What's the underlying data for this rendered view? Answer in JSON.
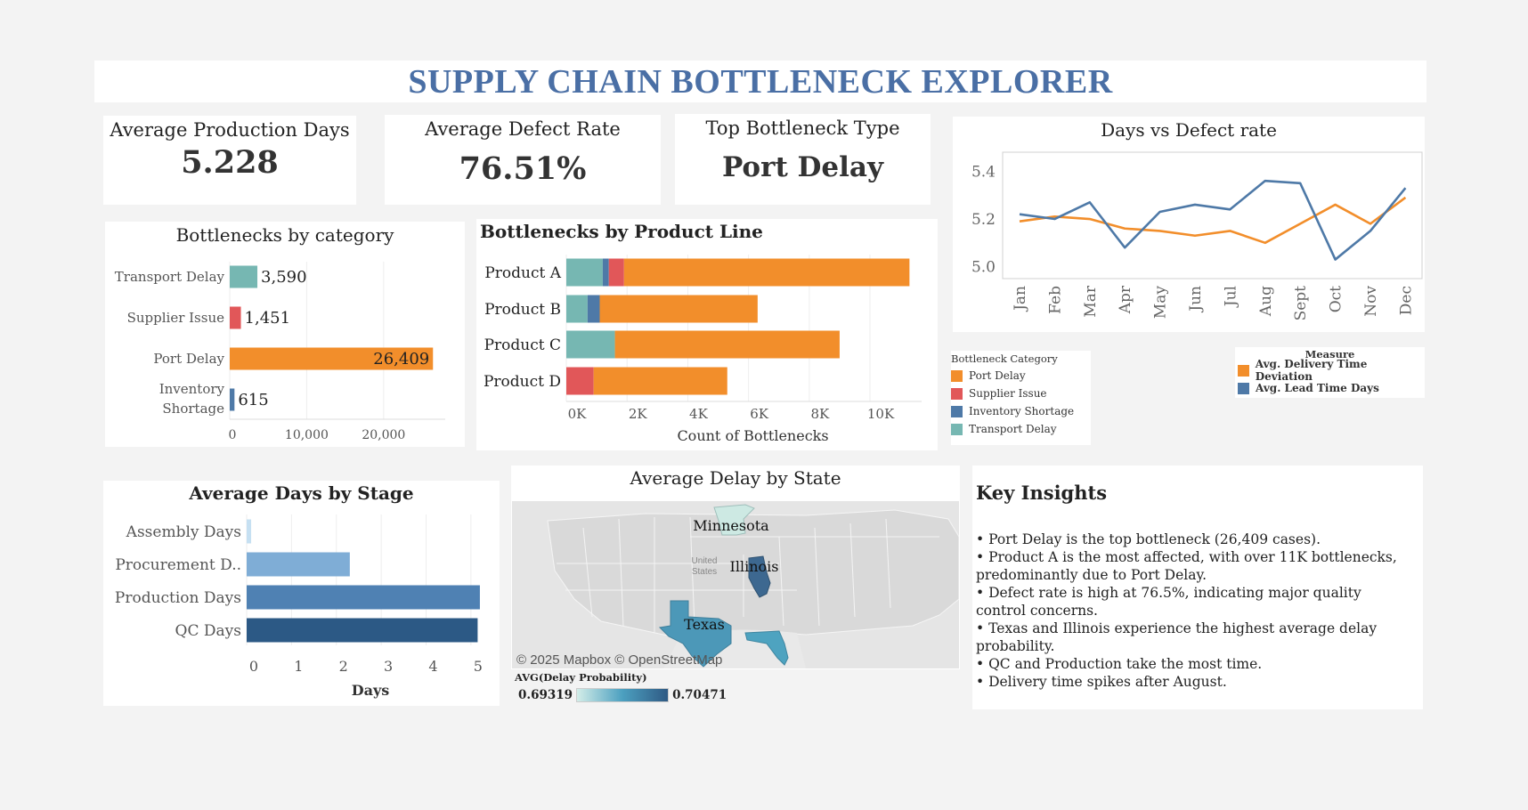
{
  "dashboard_title": "SUPPLY CHAIN BOTTLENECK EXPLORER",
  "kpis": [
    {
      "label": "Average Production Days",
      "value": "5.228"
    },
    {
      "label": "Average Defect Rate",
      "value": "76.51%"
    },
    {
      "label": "Top Bottleneck Type",
      "value": "Port Delay"
    }
  ],
  "colors": {
    "port_delay": "#f28e2b",
    "supplier_issue": "#e15759",
    "inventory_shortage": "#4e79a7",
    "transport_delay": "#76b7b2",
    "title_blue": "#4a6fa5"
  },
  "charts": {
    "by_category": {
      "title": "Bottlenecks by category",
      "chart_data": {
        "type": "bar",
        "orientation": "horizontal",
        "categories": [
          "Transport Delay",
          "Supplier Issue",
          "Port Delay",
          "Inventory Shortage"
        ],
        "values": [
          3590,
          1451,
          26409,
          615
        ],
        "value_labels": [
          "3,590",
          "1,451",
          "26,409",
          "615"
        ],
        "xlim": [
          0,
          28000
        ],
        "x_ticks": [
          0,
          10000,
          20000
        ],
        "x_tick_labels": [
          "0",
          "10,000",
          "20,000"
        ],
        "grid": true
      }
    },
    "by_product": {
      "title": "Bottlenecks by Product Line",
      "chart_data": {
        "type": "bar",
        "orientation": "horizontal",
        "stacked": true,
        "categories": [
          "Product A",
          "Product B",
          "Product C",
          "Product D"
        ],
        "series": [
          {
            "name": "Transport Delay",
            "values": [
              1200,
              700,
              1600,
              0
            ]
          },
          {
            "name": "Inventory Shortage",
            "values": [
              200,
              400,
              0,
              0
            ]
          },
          {
            "name": "Supplier Issue",
            "values": [
              500,
              0,
              0,
              900
            ]
          },
          {
            "name": "Port Delay",
            "values": [
              9400,
              5200,
              7400,
              4400
            ]
          }
        ],
        "xlabel": "Count of Bottlenecks",
        "xlim": [
          0,
          11700
        ],
        "x_ticks": [
          0,
          2000,
          4000,
          6000,
          8000,
          10000
        ],
        "x_tick_labels": [
          "0K",
          "2K",
          "4K",
          "6K",
          "8K",
          "10K"
        ],
        "grid": true
      }
    },
    "days_vs_defect": {
      "title": "Days vs Defect rate",
      "chart_data": {
        "type": "line",
        "categories": [
          "Jan",
          "Feb",
          "Mar",
          "Apr",
          "May",
          "Jun",
          "Jul",
          "Aug",
          "Sept",
          "Oct",
          "Nov",
          "Dec"
        ],
        "series": [
          {
            "name": "Avg. Delivery Time Deviation",
            "values": [
              5.19,
              5.21,
              5.2,
              5.16,
              5.15,
              5.13,
              5.15,
              5.1,
              5.18,
              5.26,
              5.18,
              5.29
            ]
          },
          {
            "name": "Avg. Lead Time Days",
            "values": [
              5.22,
              5.2,
              5.27,
              5.08,
              5.23,
              5.26,
              5.24,
              5.36,
              5.35,
              5.03,
              5.15,
              5.33
            ]
          }
        ],
        "ylim": [
          4.95,
          5.48
        ],
        "y_ticks": [
          5.0,
          5.2,
          5.4
        ],
        "y_tick_labels": [
          "5.0",
          "5.2",
          "5.4"
        ],
        "grid": false
      }
    },
    "by_stage": {
      "title": "Average Days by Stage",
      "chart_data": {
        "type": "bar",
        "orientation": "horizontal",
        "categories": [
          "Assembly Days",
          "Procurement D..",
          "Production Days",
          "QC Days"
        ],
        "values": [
          0.1,
          2.3,
          5.2,
          5.15
        ],
        "colors": [
          "#c6e0f2",
          "#7fadd6",
          "#4f81b3",
          "#2c5985"
        ],
        "xlabel": "Days",
        "xlim": [
          0,
          5.4
        ],
        "x_ticks": [
          0,
          1,
          2,
          3,
          4,
          5
        ],
        "x_tick_labels": [
          "0",
          "1",
          "2",
          "3",
          "4",
          "5"
        ],
        "grid": true
      }
    }
  },
  "legends": {
    "category": {
      "title": "Bottleneck Category",
      "items": [
        "Port Delay",
        "Supplier Issue",
        "Inventory Shortage",
        "Transport Delay"
      ]
    },
    "measure": {
      "title": "Measure",
      "items": [
        "Avg. Delivery Time Deviation",
        "Avg. Lead Time Days"
      ]
    }
  },
  "map": {
    "title": "Average Delay by State",
    "states": [
      "Minnesota",
      "Illinois",
      "Texas"
    ],
    "country_label_1": "United",
    "country_label_2": "States",
    "attribution": "© 2025 Mapbox © OpenStreetMap",
    "scale_title": "AVG(Delay Probability)",
    "scale_min": "0.69319",
    "scale_max": "0.70471"
  },
  "insights": {
    "title": "Key Insights",
    "items": [
      "• Port Delay is the top bottleneck (26,409 cases).",
      "• Product A is the most affected, with over 11K bottlenecks, predominantly due to Port Delay.",
      "• Defect rate is high at 76.5%, indicating major quality control concerns.",
      "• Texas and Illinois experience the highest average delay probability.",
      "• QC and Production take the most time.",
      "• Delivery time spikes after August."
    ]
  }
}
